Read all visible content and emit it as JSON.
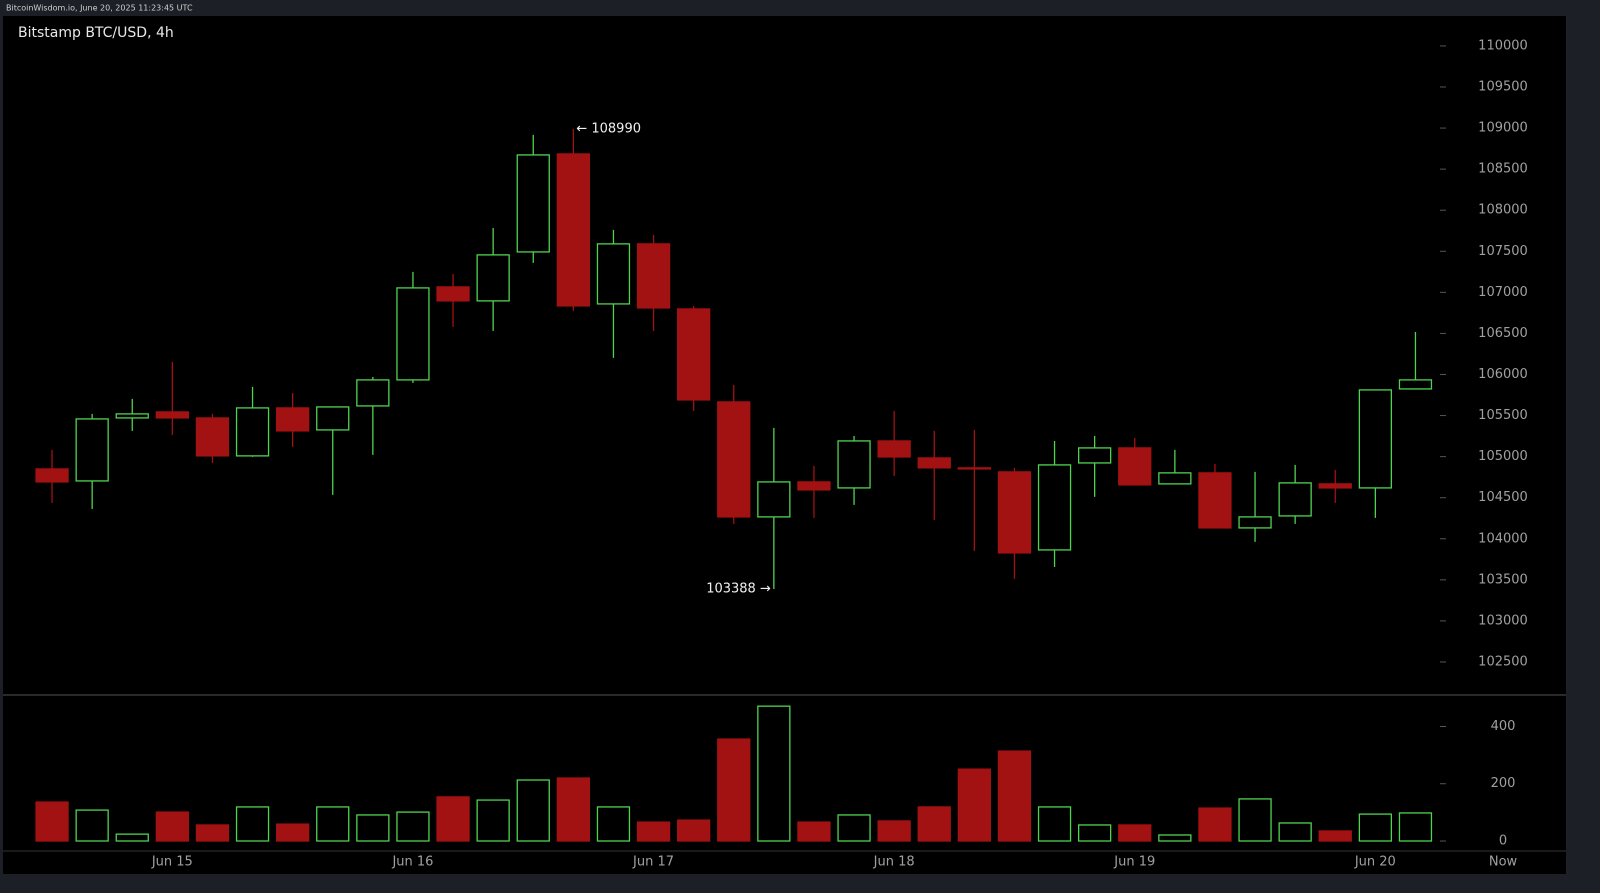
{
  "header": {
    "text": "BitcoinWisdom.io, June 20, 2025 11:23:45 UTC"
  },
  "chart_data": {
    "type": "candlestick",
    "title": "Bitstamp BTC/USD, 4h",
    "categories": [
      null,
      null,
      null,
      "Jun 15",
      null,
      null,
      null,
      null,
      null,
      "Jun 16",
      null,
      null,
      null,
      null,
      null,
      "Jun 17",
      null,
      null,
      null,
      null,
      null,
      "Jun 18",
      null,
      null,
      null,
      null,
      null,
      "Jun 19",
      null,
      null,
      null,
      null,
      null,
      "Jun 20",
      null
    ],
    "now_label": "Now",
    "open": [
      104850,
      104704,
      105471,
      105544,
      105471,
      105009,
      105593,
      105325,
      105617,
      105934,
      107066,
      106896,
      107492,
      108685,
      106859,
      107590,
      106798,
      105666,
      104266,
      104692,
      104619,
      105191,
      104984,
      104863,
      104814,
      103864,
      104923,
      105106,
      104668,
      104802,
      104132,
      104278,
      104668,
      104619,
      105824
    ],
    "high": [
      105082,
      105520,
      105703,
      106153,
      105520,
      105849,
      105776,
      105605,
      105970,
      107249,
      107224,
      107784,
      108917,
      108990,
      107760,
      107699,
      106835,
      105873,
      105350,
      104887,
      105252,
      105556,
      105313,
      105325,
      104863,
      105191,
      105252,
      105228,
      105082,
      104911,
      104814,
      104899,
      104838,
      105812,
      106518
    ],
    "low": [
      104436,
      104363,
      105313,
      105264,
      104923,
      104997,
      105118,
      104534,
      105021,
      105897,
      106579,
      106530,
      107358,
      106774,
      106202,
      106530,
      105556,
      104181,
      103388,
      104254,
      104412,
      104765,
      104230,
      103852,
      103511,
      103657,
      104510,
      104656,
      104668,
      104132,
      103962,
      104181,
      104436,
      104254,
      105824
    ],
    "close": [
      104692,
      105459,
      105520,
      105471,
      105009,
      105593,
      105313,
      105605,
      105934,
      107054,
      106896,
      107456,
      108673,
      106835,
      107590,
      106810,
      105690,
      104266,
      104692,
      104595,
      105191,
      104996,
      104863,
      104850,
      103828,
      104899,
      105106,
      104656,
      104802,
      104132,
      104266,
      104680,
      104619,
      105812,
      105934
    ],
    "volume": [
      136,
      108,
      24,
      101,
      56,
      119,
      59,
      119,
      91,
      101,
      154,
      143,
      213,
      220,
      119,
      66,
      73,
      356,
      471,
      66,
      91,
      70,
      119,
      251,
      314,
      119,
      56,
      56,
      21,
      115,
      147,
      63,
      35,
      94,
      98
    ],
    "ylim": [
      102110,
      110340
    ],
    "yticks": [
      102500,
      103000,
      103500,
      104000,
      104500,
      105000,
      105500,
      106000,
      106500,
      107000,
      107500,
      108000,
      108500,
      109000,
      109500,
      110000
    ],
    "volume_ylim": [
      0,
      510
    ],
    "volume_yticks": [
      0,
      200,
      400
    ],
    "annotations": [
      "← 108990",
      "103388 →"
    ],
    "up_color": "#4fd34f",
    "down_color": "#a31212"
  }
}
